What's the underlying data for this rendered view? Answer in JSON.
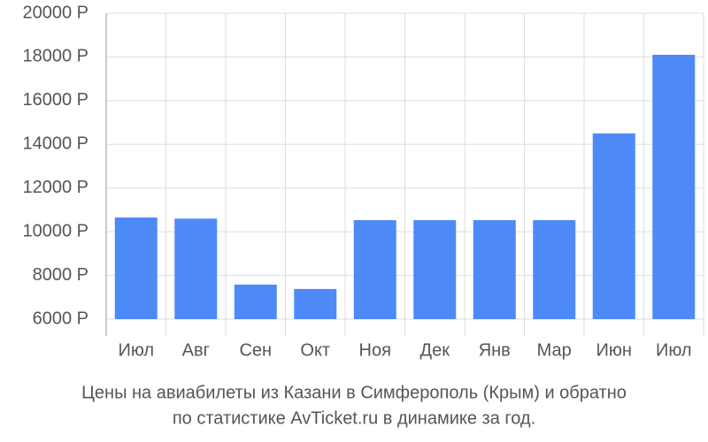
{
  "chart_data": {
    "type": "bar",
    "title_lines": [
      "Цены на авиабилеты из Казани в Симферополь (Крым) и обратно",
      "по статистике AvTicket.ru в динамике за год."
    ],
    "categories": [
      "Июл",
      "Авг",
      "Сен",
      "Окт",
      "Ноя",
      "Дек",
      "Янв",
      "Мар",
      "Июн",
      "Июл"
    ],
    "values": [
      10650,
      10600,
      7580,
      7380,
      10530,
      10530,
      10530,
      10530,
      14500,
      18100
    ],
    "color": "#4d8af8",
    "ylim": [
      6000,
      20000
    ],
    "yticks": [
      {
        "value": 6000,
        "label": "6000 Р"
      },
      {
        "value": 8000,
        "label": "8000 Р"
      },
      {
        "value": 10000,
        "label": "10000 Р"
      },
      {
        "value": 12000,
        "label": "12000 Р"
      },
      {
        "value": 14000,
        "label": "14000 Р"
      },
      {
        "value": 16000,
        "label": "16000 Р"
      },
      {
        "value": 18000,
        "label": "18000 Р"
      },
      {
        "value": 20000,
        "label": "20000 Р"
      }
    ],
    "grid": true
  }
}
